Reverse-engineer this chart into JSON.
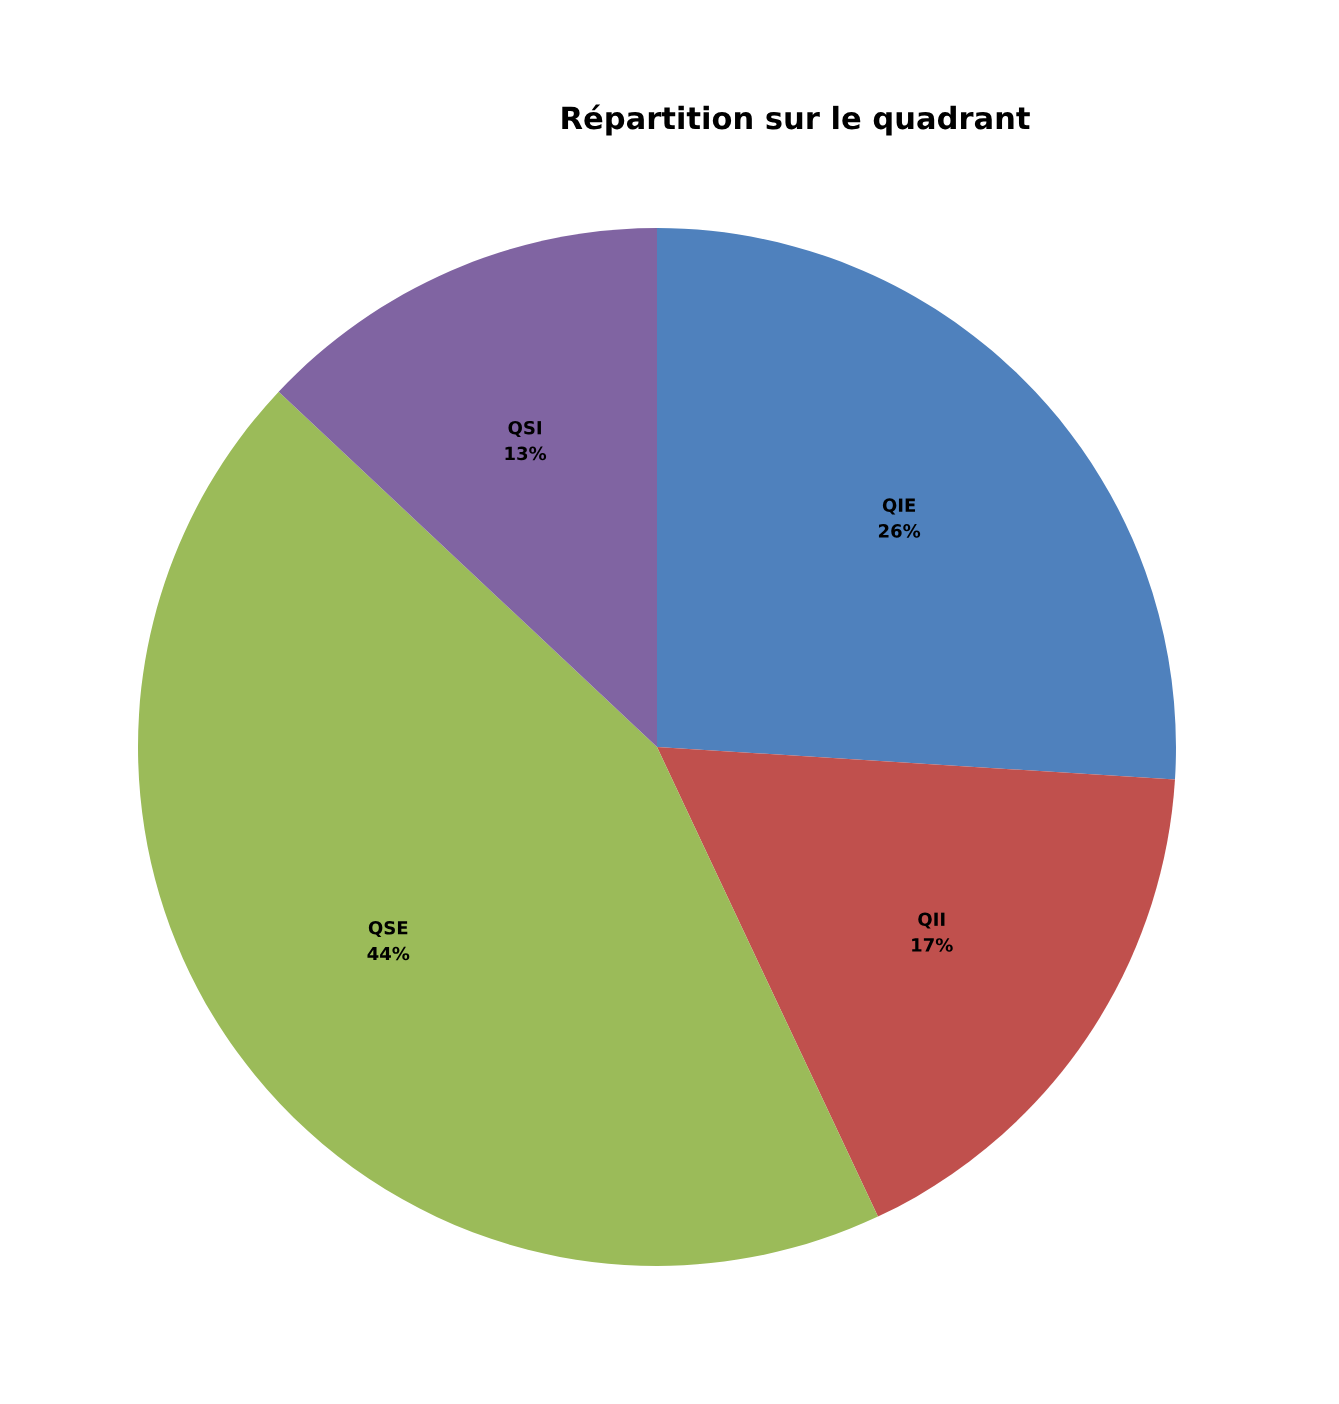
{
  "chart_data": {
    "type": "pie",
    "title": "Répartition sur le quadrant",
    "categories": [
      "QIE",
      "QII",
      "QSE",
      "QSI"
    ],
    "values": [
      26,
      17,
      44,
      13
    ],
    "colors": [
      "#4f81bd",
      "#c0504d",
      "#9bbb59",
      "#8064a2"
    ],
    "value_labels": [
      "26%",
      "17%",
      "44%",
      "13%"
    ],
    "legend": false
  }
}
